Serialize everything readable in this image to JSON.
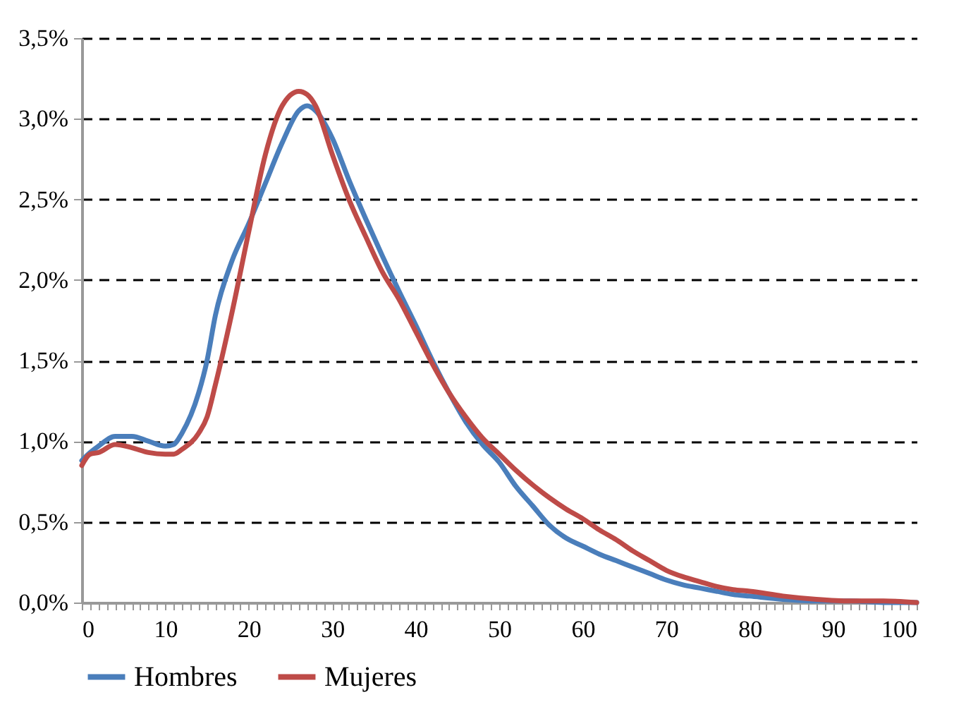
{
  "chart_data": {
    "type": "line",
    "x": [
      0,
      1,
      2,
      4,
      6,
      8,
      10,
      11,
      12,
      14,
      15,
      16,
      18,
      20,
      22,
      24,
      26,
      27,
      28,
      30,
      32,
      34,
      36,
      38,
      40,
      42,
      44,
      46,
      48,
      50,
      52,
      54,
      56,
      58,
      60,
      62,
      64,
      66,
      68,
      70,
      72,
      74,
      76,
      78,
      80,
      84,
      88,
      92,
      96,
      100
    ],
    "series": [
      {
        "name": "Hombres",
        "color": "#4a7ebb",
        "values": [
          0.88,
          0.93,
          0.97,
          1.03,
          1.03,
          1.0,
          0.97,
          0.98,
          1.05,
          1.3,
          1.5,
          1.78,
          2.12,
          2.35,
          2.6,
          2.85,
          3.05,
          3.08,
          3.05,
          2.88,
          2.62,
          2.38,
          2.15,
          1.93,
          1.72,
          1.5,
          1.3,
          1.12,
          0.98,
          0.87,
          0.72,
          0.6,
          0.48,
          0.4,
          0.35,
          0.3,
          0.26,
          0.22,
          0.18,
          0.14,
          0.11,
          0.09,
          0.07,
          0.05,
          0.04,
          0.02,
          0.01,
          0.01,
          0,
          0
        ]
      },
      {
        "name": "Mujeres",
        "color": "#be4b48",
        "values": [
          0.85,
          0.92,
          0.93,
          0.98,
          0.96,
          0.93,
          0.92,
          0.92,
          0.95,
          1.05,
          1.15,
          1.35,
          1.8,
          2.3,
          2.78,
          3.08,
          3.17,
          3.15,
          3.08,
          2.78,
          2.5,
          2.27,
          2.05,
          1.88,
          1.68,
          1.48,
          1.3,
          1.15,
          1.02,
          0.92,
          0.82,
          0.73,
          0.65,
          0.58,
          0.52,
          0.45,
          0.39,
          0.32,
          0.26,
          0.2,
          0.16,
          0.13,
          0.1,
          0.08,
          0.07,
          0.04,
          0.02,
          0.01,
          0.01,
          0
        ]
      }
    ],
    "xlim": [
      0,
      100
    ],
    "xticks": [
      0,
      {
        "value": 1,
        "label": null
      },
      {
        "value": 2,
        "label": null
      },
      {
        "value": 3,
        "label": null
      },
      {
        "value": 4,
        "label": null
      },
      {
        "value": 5,
        "label": null
      },
      {
        "value": 6,
        "label": null
      },
      {
        "value": 7,
        "label": null
      },
      {
        "value": 8,
        "label": null
      },
      {
        "value": 9,
        "label": null
      },
      10,
      {
        "value": 11,
        "label": null
      },
      {
        "value": 12,
        "label": null
      },
      {
        "value": 13,
        "label": null
      },
      {
        "value": 14,
        "label": null
      },
      {
        "value": 15,
        "label": null
      },
      {
        "value": 16,
        "label": null
      },
      {
        "value": 17,
        "label": null
      },
      {
        "value": 18,
        "label": null
      },
      {
        "value": 19,
        "label": null
      },
      20,
      {
        "value": 21,
        "label": null
      },
      {
        "value": 22,
        "label": null
      },
      {
        "value": 23,
        "label": null
      },
      {
        "value": 24,
        "label": null
      },
      {
        "value": 25,
        "label": null
      },
      {
        "value": 26,
        "label": null
      },
      {
        "value": 27,
        "label": null
      },
      {
        "value": 28,
        "label": null
      },
      {
        "value": 29,
        "label": null
      },
      30,
      {
        "value": 31,
        "label": null
      },
      {
        "value": 32,
        "label": null
      },
      {
        "value": 33,
        "label": null
      },
      {
        "value": 34,
        "label": null
      },
      {
        "value": 35,
        "label": null
      },
      {
        "value": 36,
        "label": null
      },
      {
        "value": 37,
        "label": null
      },
      {
        "value": 38,
        "label": null
      },
      {
        "value": 39,
        "label": null
      },
      40,
      {
        "value": 41,
        "label": null
      },
      {
        "value": 42,
        "label": null
      },
      {
        "value": 43,
        "label": null
      },
      {
        "value": 44,
        "label": null
      },
      {
        "value": 45,
        "label": null
      },
      {
        "value": 46,
        "label": null
      },
      {
        "value": 47,
        "label": null
      },
      {
        "value": 48,
        "label": null
      },
      {
        "value": 49,
        "label": null
      },
      50,
      {
        "value": 51,
        "label": null
      },
      {
        "value": 52,
        "label": null
      },
      {
        "value": 53,
        "label": null
      },
      {
        "value": 54,
        "label": null
      },
      {
        "value": 55,
        "label": null
      },
      {
        "value": 56,
        "label": null
      },
      {
        "value": 57,
        "label": null
      },
      {
        "value": 58,
        "label": null
      },
      {
        "value": 59,
        "label": null
      },
      60,
      {
        "value": 61,
        "label": null
      },
      {
        "value": 62,
        "label": null
      },
      {
        "value": 63,
        "label": null
      },
      {
        "value": 64,
        "label": null
      },
      {
        "value": 65,
        "label": null
      },
      {
        "value": 66,
        "label": null
      },
      {
        "value": 67,
        "label": null
      },
      {
        "value": 68,
        "label": null
      },
      {
        "value": 69,
        "label": null
      },
      70,
      {
        "value": 71,
        "label": null
      },
      {
        "value": 72,
        "label": null
      },
      {
        "value": 73,
        "label": null
      },
      {
        "value": 74,
        "label": null
      },
      {
        "value": 75,
        "label": null
      },
      {
        "value": 76,
        "label": null
      },
      {
        "value": 77,
        "label": null
      },
      {
        "value": 78,
        "label": null
      },
      {
        "value": 79,
        "label": null
      },
      80,
      {
        "value": 81,
        "label": null
      },
      {
        "value": 82,
        "label": null
      },
      {
        "value": 83,
        "label": null
      },
      {
        "value": 84,
        "label": null
      },
      {
        "value": 85,
        "label": null
      },
      {
        "value": 86,
        "label": null
      },
      {
        "value": 87,
        "label": null
      },
      {
        "value": 88,
        "label": null
      },
      {
        "value": 89,
        "label": null
      },
      90,
      {
        "value": 91,
        "label": null
      },
      {
        "value": 92,
        "label": null
      },
      {
        "value": 93,
        "label": null
      },
      {
        "value": 94,
        "label": null
      },
      {
        "value": 95,
        "label": null
      },
      {
        "value": 96,
        "label": null
      },
      {
        "value": 97,
        "label": null
      },
      {
        "value": 98,
        "label": null
      },
      {
        "value": 99,
        "label": null
      },
      100
    ],
    "ylim": [
      0,
      3.5
    ],
    "yticks": [
      {
        "value": 0,
        "label": "0,0%"
      },
      {
        "value": 0.5,
        "label": "0,5%"
      },
      {
        "value": 1,
        "label": "1,0%"
      },
      {
        "value": 1.5,
        "label": "1,5%"
      },
      {
        "value": 2,
        "label": "2,0%"
      },
      {
        "value": 2.5,
        "label": "2,5%"
      },
      {
        "value": 3,
        "label": "3,0%"
      },
      {
        "value": 3.5,
        "label": "3,5%"
      }
    ],
    "grid": "y",
    "legend": "bottom",
    "marker": "none",
    "line_style": "solid"
  }
}
